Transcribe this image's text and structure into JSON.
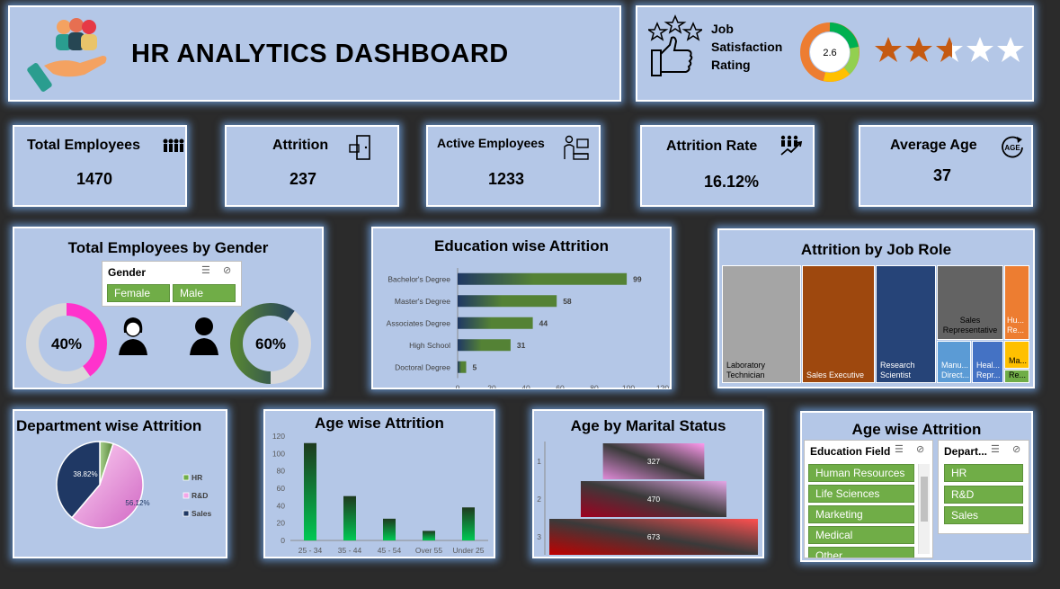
{
  "header": {
    "title": "HR ANALYTICS DASHBOARD"
  },
  "satisfaction": {
    "label_line1": "Job",
    "label_line2": "Satisfaction",
    "label_line3": "Rating",
    "value": "2.6",
    "stars_total": 5,
    "stars_value": 2.6,
    "gauge_colors": [
      "#ed7d31",
      "#ffc000",
      "#92d050",
      "#00b050"
    ],
    "star_color": "#c55a11"
  },
  "kpis": {
    "total_employees": {
      "title": "Total Employees",
      "value": "1470",
      "icon": "people-icon"
    },
    "attrition": {
      "title": "Attrition",
      "value": "237",
      "icon": "exit-door-icon"
    },
    "active_employees": {
      "title": "Active Employees",
      "value": "1233",
      "icon": "desk-worker-icon"
    },
    "attrition_rate": {
      "title": "Attrition Rate",
      "value": "16.12%",
      "icon": "people-trend-icon"
    },
    "average_age": {
      "title": "Average Age",
      "value": "37",
      "icon": "age-icon",
      "icon_text": "AGE"
    }
  },
  "gender": {
    "title": "Total Employees by Gender",
    "slicer": {
      "header": "Gender",
      "options": [
        "Female",
        "Male"
      ]
    },
    "female_pct_label": "40%",
    "male_pct_label": "60%",
    "female_pct": 40,
    "male_pct": 60,
    "colors": {
      "female": "#ff33cc",
      "male": "#1f3864",
      "track": "#d9d9d9"
    }
  },
  "education_chart": {
    "title": "Education wise Attrition",
    "chart_data": {
      "type": "bar",
      "orientation": "horizontal",
      "categories": [
        "Bachelor's Degree",
        "Master's Degree",
        "Associates Degree",
        "High School",
        "Doctoral Degree"
      ],
      "values": [
        99,
        58,
        44,
        31,
        5
      ],
      "xlim": [
        0,
        120
      ],
      "xticks": [
        "0",
        "20",
        "40",
        "60",
        "80",
        "100",
        "120"
      ]
    }
  },
  "job_role": {
    "title": "Attrition by Job Role",
    "cells": [
      {
        "label": "Laboratory Technician",
        "color": "#a5a5a5"
      },
      {
        "label": "Sales Executive",
        "color": "#9e480e"
      },
      {
        "label": "Research Scientist",
        "color": "#264478"
      },
      {
        "label": "Sales Representative",
        "color": "#636363"
      },
      {
        "label": "Hu... Re...",
        "color": "#ed7d31"
      },
      {
        "label": "Manu... Direct...",
        "color": "#5b9bd5"
      },
      {
        "label": "Heal... Repr...",
        "color": "#4472c4"
      },
      {
        "label": "Ma...",
        "color": "#ffc000"
      },
      {
        "label": "Re...",
        "color": "#70ad47"
      }
    ]
  },
  "department": {
    "title": "Department wise Attrition",
    "chart_data": {
      "type": "pie",
      "categories": [
        "HR",
        "R&D",
        "Sales"
      ],
      "values": [
        5.06,
        56.12,
        38.82
      ],
      "labels": [
        "5.06%",
        "56.12%",
        "38.82%"
      ],
      "colors": [
        "#70ad47",
        "#f4a6e8",
        "#1f3864"
      ],
      "legend": "right"
    }
  },
  "age_attrition": {
    "title": "Age wise Attrition",
    "chart_data": {
      "type": "bar",
      "categories": [
        "25 - 34",
        "35 - 44",
        "45 - 54",
        "Over 55",
        "Under 25"
      ],
      "values": [
        112,
        51,
        25,
        11,
        38
      ],
      "ylim": [
        0,
        120
      ],
      "yticks": [
        "0",
        "20",
        "40",
        "60",
        "80",
        "100",
        "120"
      ]
    }
  },
  "marital": {
    "title": "Age by Marital Status",
    "chart_data": {
      "type": "bar",
      "orientation": "horizontal",
      "categories": [
        "1",
        "2",
        "3"
      ],
      "values": [
        327,
        470,
        673
      ],
      "labels": [
        "327",
        "470",
        "673"
      ]
    }
  },
  "age_filters": {
    "title": "Age wise Attrition",
    "education_slicer": {
      "header": "Education Field",
      "options": [
        "Human Resources",
        "Life Sciences",
        "Marketing",
        "Medical",
        "Other"
      ]
    },
    "department_slicer": {
      "header": "Depart...",
      "options": [
        "HR",
        "R&D",
        "Sales"
      ]
    }
  }
}
